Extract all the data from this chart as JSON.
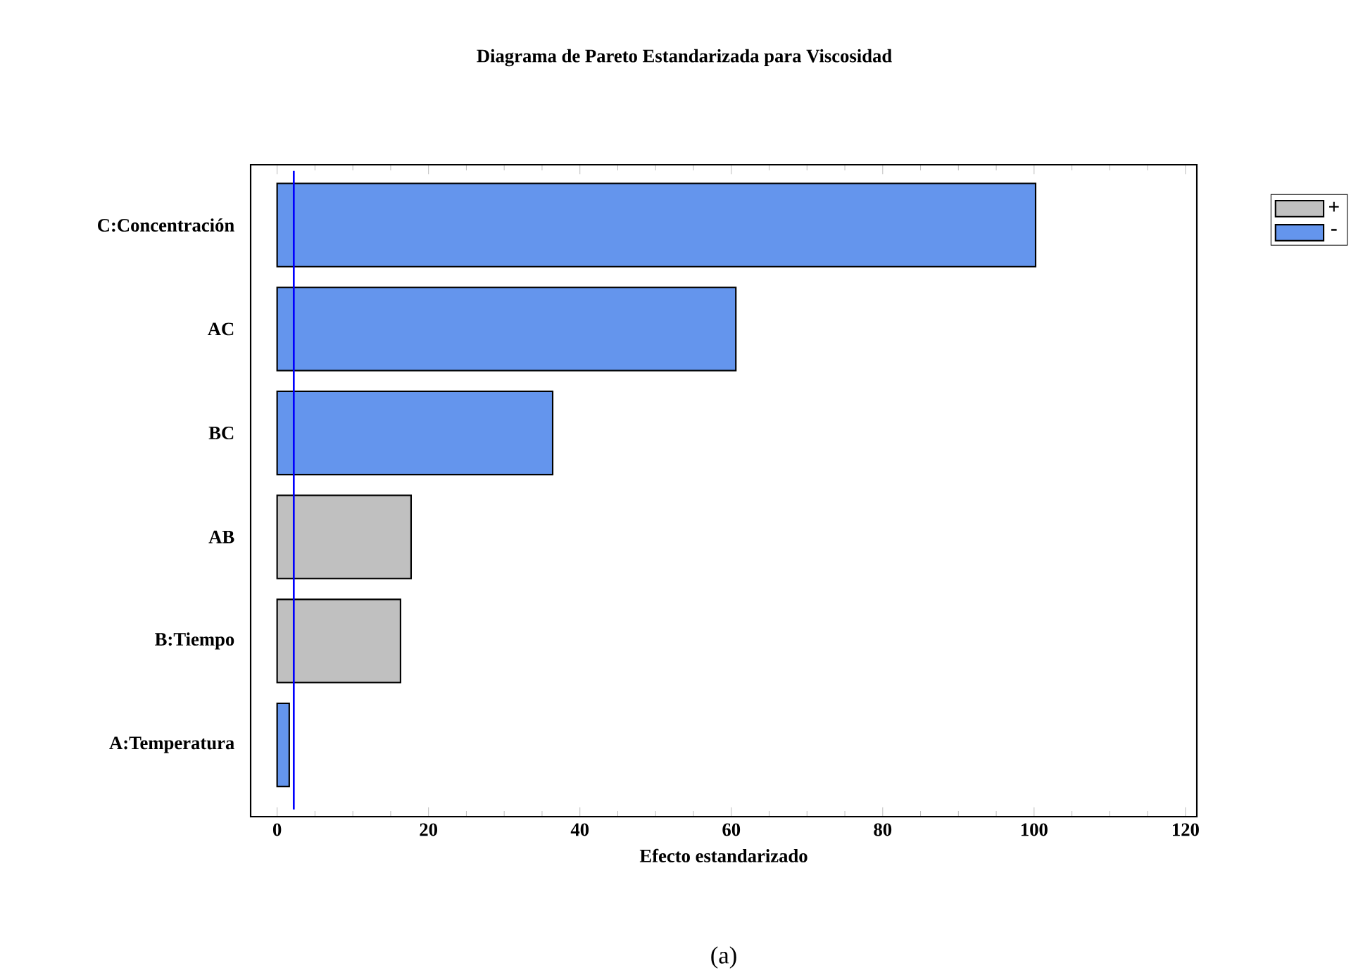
{
  "chart_data": {
    "type": "bar",
    "orientation": "horizontal",
    "title": "Diagrama de Pareto Estandarizada para Viscosidad",
    "xlabel": "Efecto estandarizado",
    "categories": [
      "C:Concentración",
      "AC",
      "BC",
      "AB",
      "B:Tiempo",
      "A:Temperatura"
    ],
    "series": [
      {
        "name": "+",
        "color": "#c0c0c0",
        "values": [
          null,
          null,
          null,
          17.7,
          16.3,
          null
        ]
      },
      {
        "name": "-",
        "color": "#6495ed",
        "values": [
          100.2,
          60.6,
          36.4,
          null,
          null,
          1.6
        ]
      }
    ],
    "xlim": [
      -3.5,
      121.5
    ],
    "xticks": [
      0,
      20,
      40,
      60,
      80,
      100,
      120
    ],
    "ref_lines": [
      {
        "axis": "x",
        "value": 2.2,
        "color": "#0000ff"
      }
    ],
    "legend": "top right",
    "grid": false,
    "annotations": [
      "(a)"
    ]
  }
}
